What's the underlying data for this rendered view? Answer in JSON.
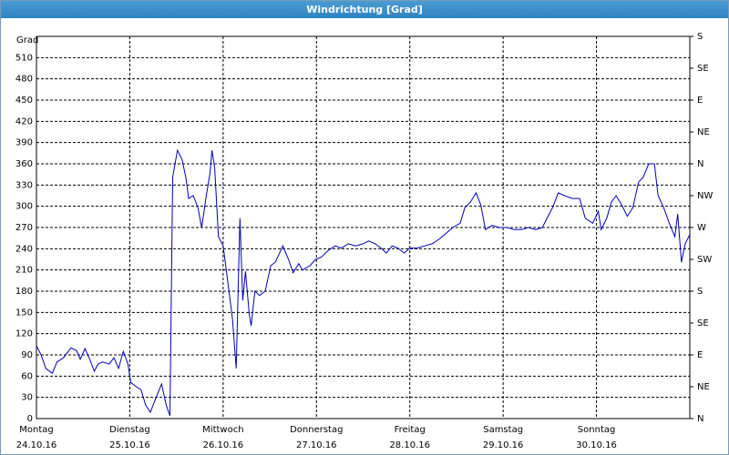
{
  "window_title": "Windrichtung [Grad]",
  "chart_data": {
    "type": "line",
    "y_label": "Grad",
    "color": "#0000b4",
    "x": [
      0,
      0.05,
      0.1,
      0.17,
      0.22,
      0.29,
      0.37,
      0.43,
      0.47,
      0.52,
      0.57,
      0.62,
      0.66,
      0.71,
      0.78,
      0.83,
      0.88,
      0.93,
      0.98,
      1.01,
      1.07,
      1.12,
      1.17,
      1.22,
      1.27,
      1.34,
      1.39,
      1.43,
      1.46,
      1.51,
      1.56,
      1.6,
      1.63,
      1.68,
      1.73,
      1.77,
      1.82,
      1.86,
      1.88,
      1.91,
      1.95,
      2.0,
      2.05,
      2.1,
      2.14,
      2.18,
      2.21,
      2.24,
      2.28,
      2.3,
      2.34,
      2.39,
      2.45,
      2.51,
      2.56,
      2.64,
      2.7,
      2.75,
      2.81,
      2.85,
      2.93,
      2.99,
      3.05,
      3.13,
      3.2,
      3.27,
      3.34,
      3.42,
      3.5,
      3.56,
      3.63,
      3.69,
      3.75,
      3.81,
      3.87,
      3.94,
      4.0,
      4.08,
      4.16,
      4.24,
      4.32,
      4.39,
      4.46,
      4.54,
      4.59,
      4.65,
      4.71,
      4.76,
      4.81,
      4.88,
      4.96,
      5.04,
      5.12,
      5.2,
      5.27,
      5.35,
      5.42,
      5.47,
      5.53,
      5.59,
      5.66,
      5.74,
      5.82,
      5.88,
      5.96,
      6.02,
      6.05,
      6.11,
      6.16,
      6.21,
      6.27,
      6.33,
      6.39,
      6.45,
      6.5,
      6.56,
      6.62,
      6.66,
      6.72,
      6.78,
      6.84,
      6.87,
      6.91,
      6.95,
      7.0
    ],
    "values": [
      103,
      90,
      71,
      64,
      80,
      86,
      100,
      96,
      84,
      99,
      84,
      67,
      77,
      80,
      77,
      86,
      71,
      95,
      77,
      51,
      45,
      41,
      19,
      9,
      26,
      49,
      19,
      4,
      341,
      379,
      366,
      341,
      311,
      315,
      298,
      270,
      315,
      347,
      379,
      354,
      257,
      244,
      193,
      141,
      71,
      283,
      167,
      208,
      148,
      131,
      180,
      174,
      180,
      216,
      221,
      244,
      225,
      206,
      219,
      210,
      216,
      225,
      228,
      238,
      244,
      241,
      247,
      244,
      247,
      251,
      247,
      241,
      234,
      244,
      241,
      234,
      241,
      241,
      244,
      247,
      254,
      262,
      270,
      276,
      298,
      306,
      319,
      302,
      267,
      273,
      270,
      270,
      267,
      267,
      270,
      267,
      270,
      283,
      298,
      319,
      315,
      311,
      311,
      283,
      276,
      293,
      267,
      283,
      306,
      315,
      302,
      286,
      298,
      334,
      341,
      360,
      360,
      315,
      298,
      276,
      257,
      289,
      221,
      247,
      260
    ],
    "xlim": [
      0,
      7
    ],
    "xticks": [
      {
        "value": 0,
        "label": "Montag",
        "date": "24.10.16"
      },
      {
        "value": 1,
        "label": "Dienstag",
        "date": "25.10.16"
      },
      {
        "value": 2,
        "label": "Mittwoch",
        "date": "26.10.16"
      },
      {
        "value": 3,
        "label": "Donnerstag",
        "date": "27.10.16"
      },
      {
        "value": 4,
        "label": "Freitag",
        "date": "28.10.16"
      },
      {
        "value": 5,
        "label": "Samstag",
        "date": "29.10.16"
      },
      {
        "value": 6,
        "label": "Sonntag",
        "date": "30.10.16"
      }
    ],
    "ylim": [
      0,
      540
    ],
    "yticks": [
      0,
      30,
      60,
      90,
      120,
      150,
      180,
      210,
      240,
      270,
      300,
      330,
      360,
      390,
      420,
      450,
      480,
      510
    ],
    "y2lim": [
      0,
      540
    ],
    "y2ticks": [
      {
        "value": 0,
        "label": "N"
      },
      {
        "value": 45,
        "label": "NE"
      },
      {
        "value": 90,
        "label": "E"
      },
      {
        "value": 135,
        "label": "SE"
      },
      {
        "value": 180,
        "label": "S"
      },
      {
        "value": 225,
        "label": "SW"
      },
      {
        "value": 270,
        "label": "W"
      },
      {
        "value": 315,
        "label": "NW"
      },
      {
        "value": 360,
        "label": "N"
      },
      {
        "value": 405,
        "label": "NE"
      },
      {
        "value": 450,
        "label": "E"
      },
      {
        "value": 495,
        "label": "SE"
      },
      {
        "value": 540,
        "label": "S"
      }
    ],
    "grid": true
  }
}
